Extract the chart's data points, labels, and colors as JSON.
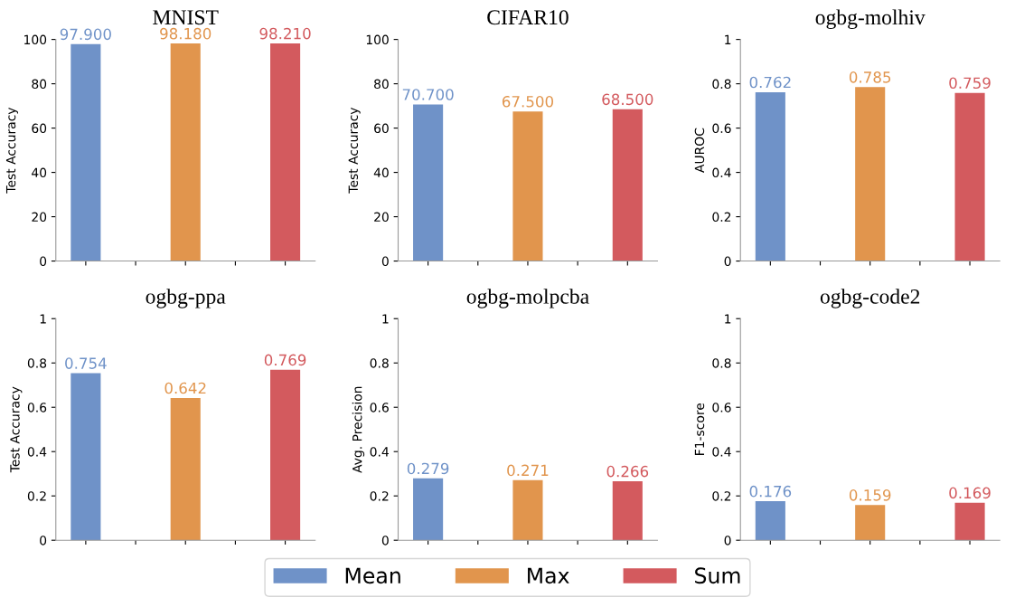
{
  "chart_data": [
    {
      "type": "bar",
      "title": "MNIST",
      "ylabel": "Test Accuracy",
      "categories": [
        null,
        null,
        null,
        null,
        null
      ],
      "ylim": [
        0,
        100
      ],
      "yticks": [
        0,
        20,
        40,
        60,
        80,
        100
      ],
      "legend": "bottom",
      "series": [
        {
          "name": "Mean",
          "color": "#6f92c8",
          "values": [
            97.9,
            null,
            null,
            null,
            null
          ],
          "value_labels": [
            "97.900",
            null,
            null,
            null,
            null
          ]
        },
        {
          "name": "Max",
          "color": "#e1954d",
          "values": [
            null,
            null,
            98.18,
            null,
            null
          ],
          "value_labels": [
            null,
            null,
            "98.180",
            null,
            null
          ]
        },
        {
          "name": "Sum",
          "color": "#d35a5e",
          "values": [
            null,
            null,
            null,
            null,
            98.21
          ],
          "value_labels": [
            null,
            null,
            null,
            null,
            "98.210"
          ]
        }
      ]
    },
    {
      "type": "bar",
      "title": "CIFAR10",
      "ylabel": "Test Accuracy",
      "categories": [
        null,
        null,
        null,
        null,
        null
      ],
      "ylim": [
        0,
        100
      ],
      "yticks": [
        0,
        20,
        40,
        60,
        80,
        100
      ],
      "series": [
        {
          "name": "Mean",
          "color": "#6f92c8",
          "values": [
            70.7,
            null,
            null,
            null,
            null
          ],
          "value_labels": [
            "70.700",
            null,
            null,
            null,
            null
          ]
        },
        {
          "name": "Max",
          "color": "#e1954d",
          "values": [
            null,
            null,
            67.5,
            null,
            null
          ],
          "value_labels": [
            null,
            null,
            "67.500",
            null,
            null
          ]
        },
        {
          "name": "Sum",
          "color": "#d35a5e",
          "values": [
            null,
            null,
            null,
            null,
            68.5
          ],
          "value_labels": [
            null,
            null,
            null,
            null,
            "68.500"
          ]
        }
      ]
    },
    {
      "type": "bar",
      "title": "ogbg-molhiv",
      "ylabel": "AUROC",
      "categories": [
        null,
        null,
        null,
        null,
        null
      ],
      "ylim": [
        0,
        1
      ],
      "yticks": [
        0,
        0.2,
        0.4,
        0.6,
        0.8,
        1
      ],
      "series": [
        {
          "name": "Mean",
          "color": "#6f92c8",
          "values": [
            0.762,
            null,
            null,
            null,
            null
          ],
          "value_labels": [
            "0.762",
            null,
            null,
            null,
            null
          ]
        },
        {
          "name": "Max",
          "color": "#e1954d",
          "values": [
            null,
            null,
            0.785,
            null,
            null
          ],
          "value_labels": [
            null,
            null,
            "0.785",
            null,
            null
          ]
        },
        {
          "name": "Sum",
          "color": "#d35a5e",
          "values": [
            null,
            null,
            null,
            null,
            0.759
          ],
          "value_labels": [
            null,
            null,
            null,
            null,
            "0.759"
          ]
        }
      ]
    },
    {
      "type": "bar",
      "title": "ogbg-ppa",
      "ylabel": "Test Accuracy",
      "categories": [
        null,
        null,
        null,
        null,
        null
      ],
      "ylim": [
        0,
        1
      ],
      "yticks": [
        0,
        0.2,
        0.4,
        0.6,
        0.8,
        1
      ],
      "series": [
        {
          "name": "Mean",
          "color": "#6f92c8",
          "values": [
            0.754,
            null,
            null,
            null,
            null
          ],
          "value_labels": [
            "0.754",
            null,
            null,
            null,
            null
          ]
        },
        {
          "name": "Max",
          "color": "#e1954d",
          "values": [
            null,
            null,
            0.642,
            null,
            null
          ],
          "value_labels": [
            null,
            null,
            "0.642",
            null,
            null
          ]
        },
        {
          "name": "Sum",
          "color": "#d35a5e",
          "values": [
            null,
            null,
            null,
            null,
            0.769
          ],
          "value_labels": [
            null,
            null,
            null,
            null,
            "0.769"
          ]
        }
      ]
    },
    {
      "type": "bar",
      "title": "ogbg-molpcba",
      "ylabel": "Avg. Precision",
      "categories": [
        null,
        null,
        null,
        null,
        null
      ],
      "ylim": [
        0,
        1
      ],
      "yticks": [
        0,
        0.2,
        0.4,
        0.6,
        0.8,
        1
      ],
      "series": [
        {
          "name": "Mean",
          "color": "#6f92c8",
          "values": [
            0.279,
            null,
            null,
            null,
            null
          ],
          "value_labels": [
            "0.279",
            null,
            null,
            null,
            null
          ]
        },
        {
          "name": "Max",
          "color": "#e1954d",
          "values": [
            null,
            null,
            0.271,
            null,
            null
          ],
          "value_labels": [
            null,
            null,
            "0.271",
            null,
            null
          ]
        },
        {
          "name": "Sum",
          "color": "#d35a5e",
          "values": [
            null,
            null,
            null,
            null,
            0.266
          ],
          "value_labels": [
            null,
            null,
            null,
            null,
            "0.266"
          ]
        }
      ]
    },
    {
      "type": "bar",
      "title": "ogbg-code2",
      "ylabel": "F1-score",
      "categories": [
        null,
        null,
        null,
        null,
        null
      ],
      "ylim": [
        0,
        1
      ],
      "yticks": [
        0,
        0.2,
        0.4,
        0.6,
        0.8,
        1
      ],
      "series": [
        {
          "name": "Mean",
          "color": "#6f92c8",
          "values": [
            0.176,
            null,
            null,
            null,
            null
          ],
          "value_labels": [
            "0.176",
            null,
            null,
            null,
            null
          ]
        },
        {
          "name": "Max",
          "color": "#e1954d",
          "values": [
            null,
            null,
            0.159,
            null,
            null
          ],
          "value_labels": [
            null,
            null,
            "0.159",
            null,
            null
          ]
        },
        {
          "name": "Sum",
          "color": "#d35a5e",
          "values": [
            null,
            null,
            null,
            null,
            0.169
          ],
          "value_labels": [
            null,
            null,
            null,
            null,
            "0.169"
          ]
        }
      ]
    }
  ]
}
